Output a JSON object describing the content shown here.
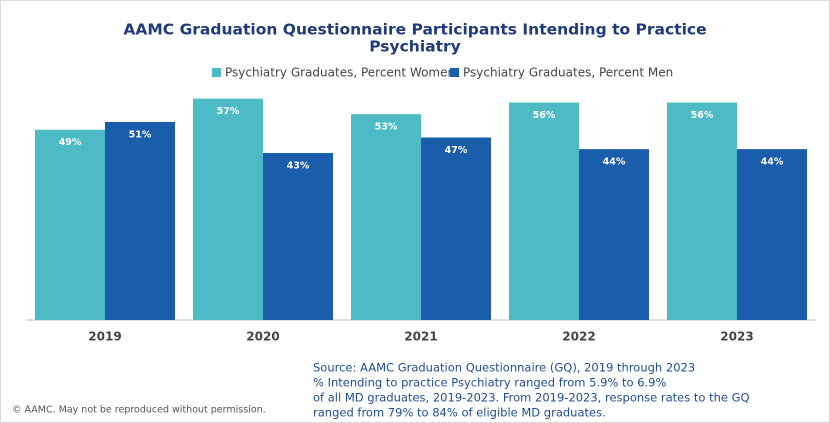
{
  "chart_data": {
    "type": "bar",
    "title": [
      "AAMC Graduation Questionnaire Participants Intending to Practice",
      "Psychiatry"
    ],
    "categories": [
      "2019",
      "2020",
      "2021",
      "2022",
      "2023"
    ],
    "series": [
      {
        "name": "Psychiatry Graduates, Percent Women",
        "color": "#4dbbc6",
        "values": [
          49,
          57,
          53,
          56,
          56
        ],
        "value_labels": [
          "49%",
          "57%",
          "53%",
          "56%",
          "56%"
        ]
      },
      {
        "name": "Psychiatry Graduates, Percent Men",
        "color": "#1a5eab",
        "values": [
          51,
          43,
          47,
          44,
          44
        ],
        "value_labels": [
          "51%",
          "43%",
          "47%",
          "44%",
          "44%"
        ]
      }
    ],
    "ylim": [
      0,
      60
    ],
    "source": [
      "Source: AAMC Graduation Questionnaire (GQ), 2019 through 2023",
      "% Intending to practice Psychiatry ranged from 5.9% to 6.9%",
      "of all MD graduates, 2019-2023.  From 2019-2023, response rates to the GQ",
      "ranged from 79% to 84% of eligible MD graduates."
    ],
    "copyright": "© AAMC. May not be reproduced without permission."
  }
}
